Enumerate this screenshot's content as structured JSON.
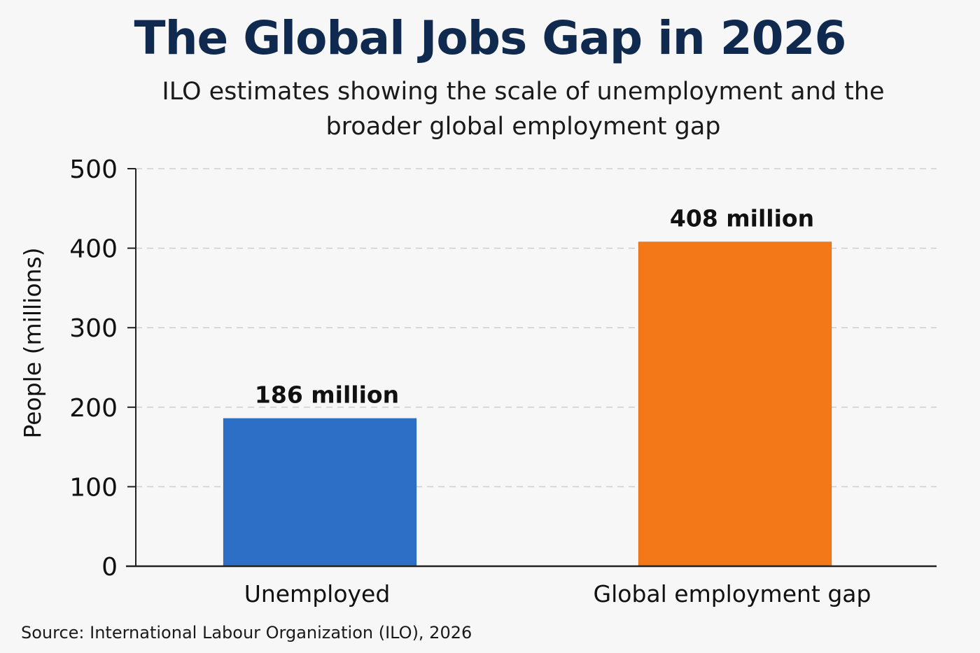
{
  "chart_data": {
    "type": "bar",
    "title": "The Global Jobs Gap in 2026",
    "subtitle": "ILO estimates showing the scale of unemployment and the broader global employment gap",
    "ylabel": "People (millions)",
    "xlabel": "",
    "ylim": [
      0,
      500
    ],
    "yticks": [
      0,
      100,
      200,
      300,
      400,
      500
    ],
    "grid": true,
    "categories": [
      "Unemployed",
      "Global employment gap"
    ],
    "values": [
      186,
      408
    ],
    "data_labels": [
      "186 million",
      "408 million"
    ],
    "colors": [
      "#2d6fc7",
      "#f27818"
    ],
    "title_color": "#102a4f",
    "source": "Source: International Labour Organization (ILO), 2026"
  }
}
